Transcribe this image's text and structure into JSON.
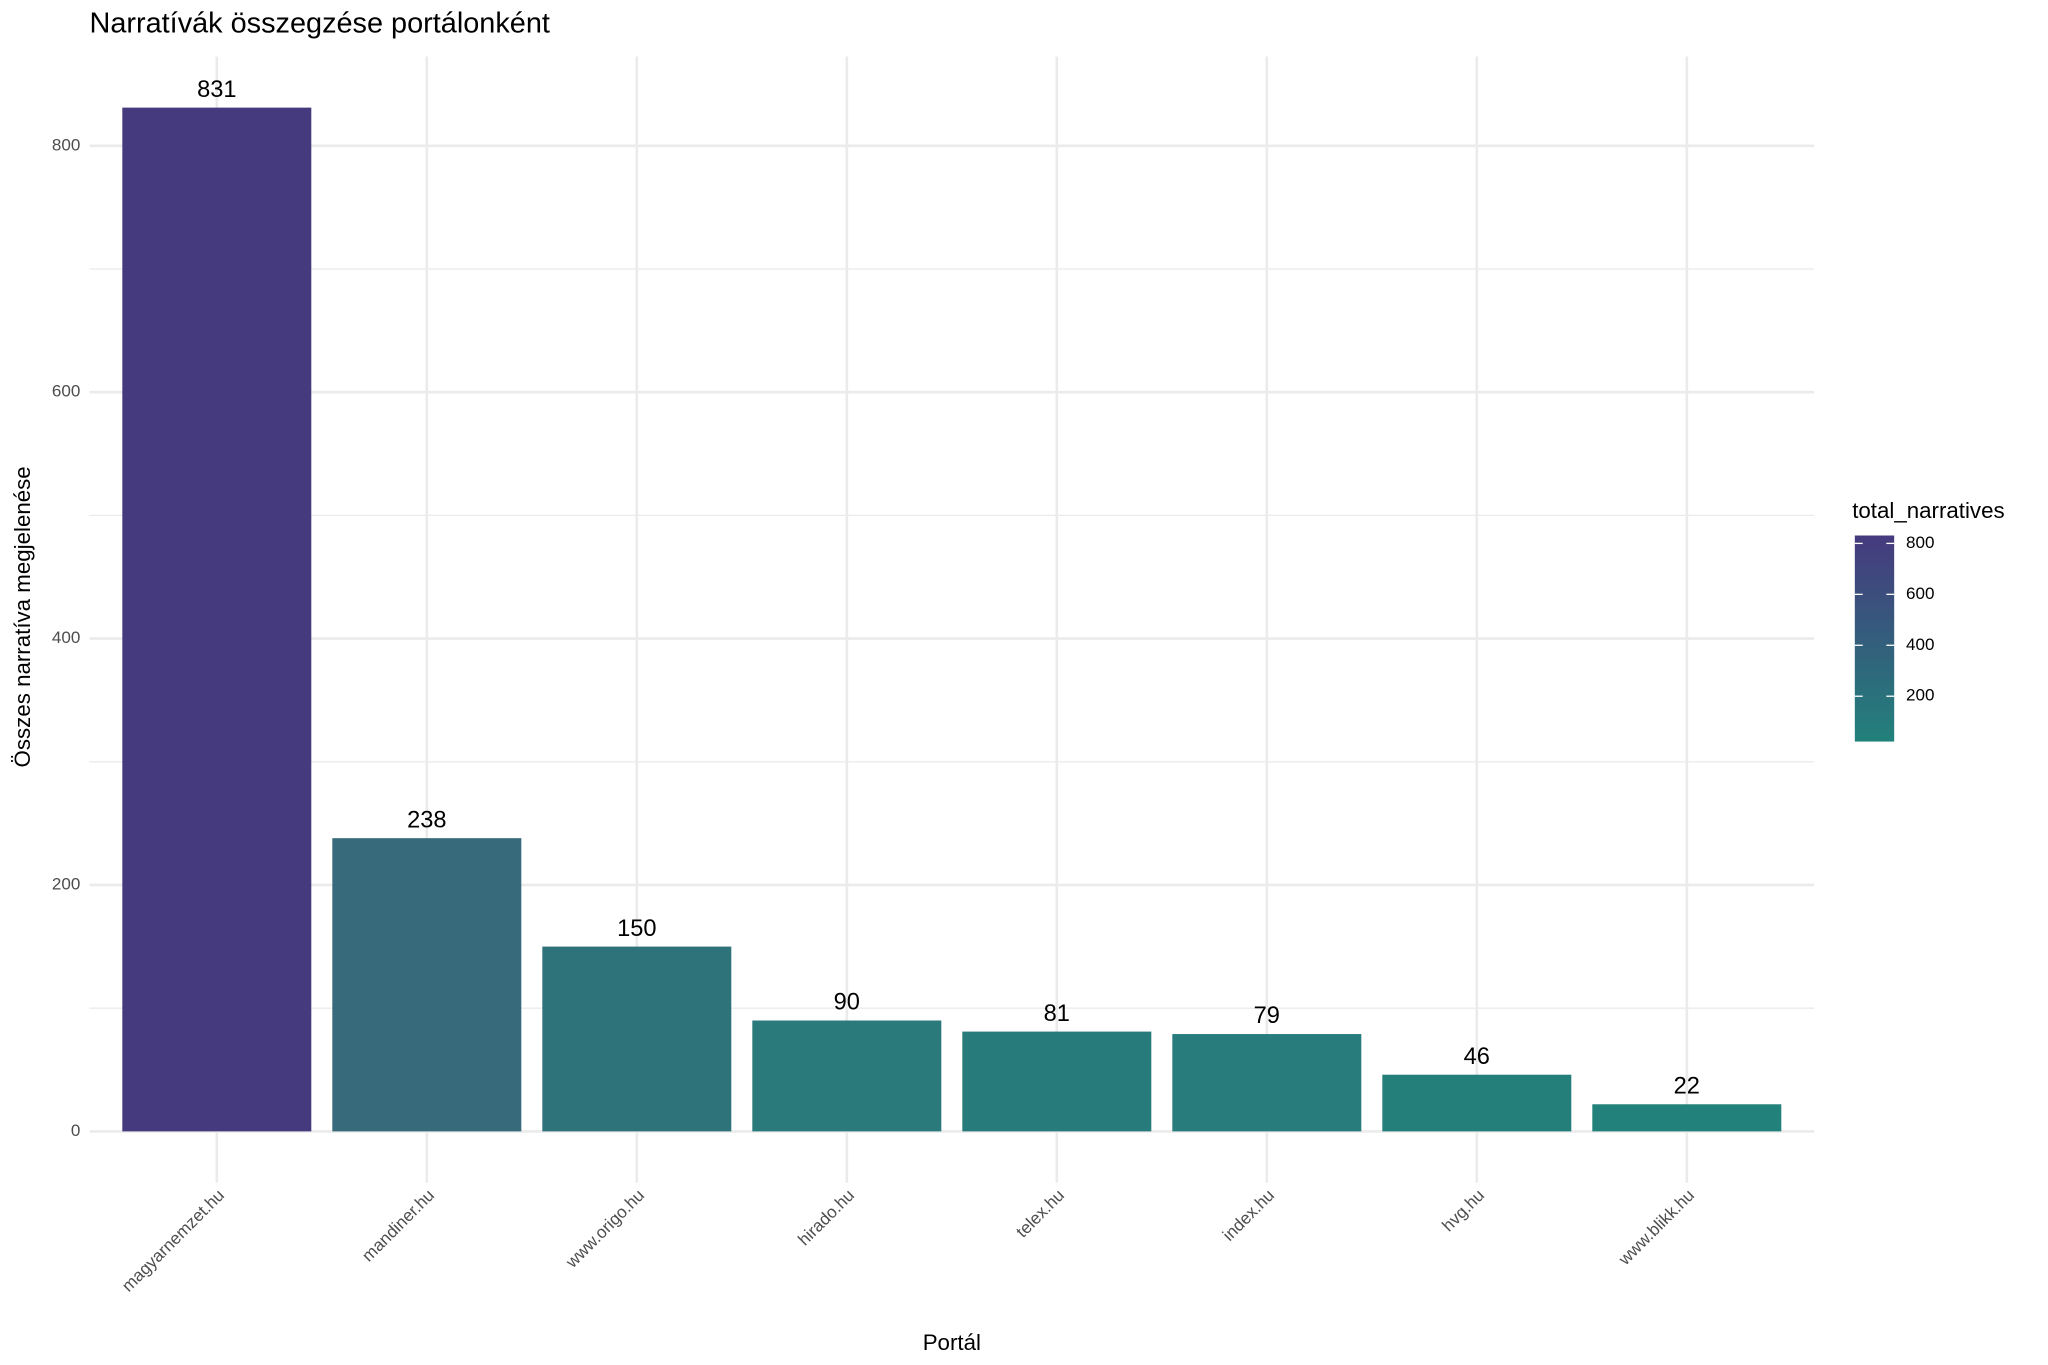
{
  "chart_data": {
    "type": "bar",
    "title": "Narratívák összegzése portálonként",
    "x_label": "Portál",
    "y_label": "Összes narratíva megjelenése",
    "categories": [
      "magyarnemzet.hu",
      "mandiner.hu",
      "www.origo.hu",
      "hirado.hu",
      "telex.hu",
      "index.hu",
      "hvg.hu",
      "www.blikk.hu"
    ],
    "values": [
      831,
      238,
      150,
      90,
      81,
      79,
      46,
      22
    ],
    "colors": [
      "#463a7e",
      "#376a7a",
      "#2f737a",
      "#2a7a7b",
      "#287b7b",
      "#287c7b",
      "#247f7b",
      "#22817b"
    ],
    "ylim": [
      -41.55,
      872.55
    ],
    "yticks": [
      0,
      200,
      400,
      600,
      800
    ],
    "y_minor_ticks": [
      100,
      300,
      500,
      700
    ],
    "grid": true,
    "colorbar": {
      "title": "total_narratives",
      "limits": [
        22,
        831
      ],
      "ticks": [
        200,
        400,
        600,
        800
      ],
      "colors": [
        "#22817b",
        "#463a7e"
      ]
    }
  }
}
